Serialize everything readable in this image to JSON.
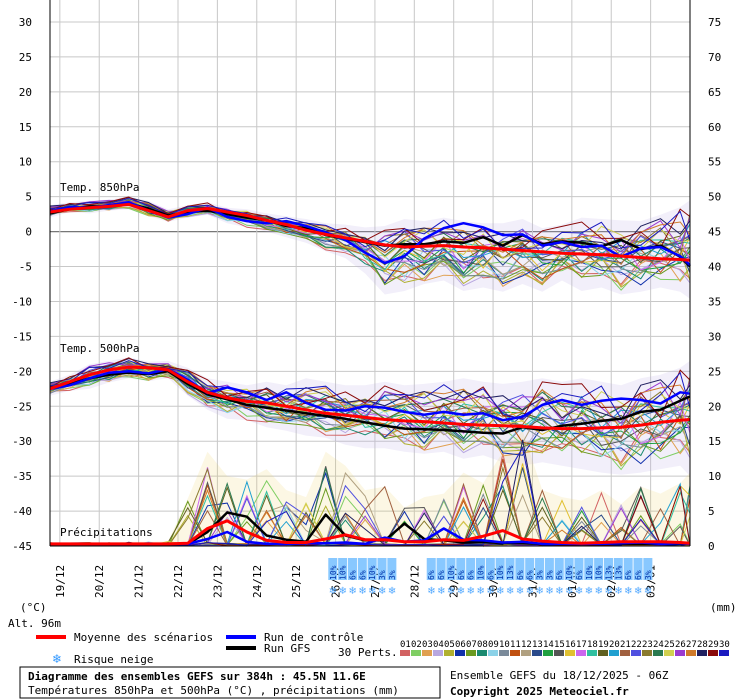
{
  "chart_data": {
    "type": "line",
    "title": "Diagramme des ensembles GEFS sur 384h : 45.5N 11.6E",
    "subtitle": "Températures 850hPa et 500hPa (°C) , précipitations (mm)",
    "run_info": "Ensemble GEFS du 18/12/2025 - 06Z",
    "copyright": "Copyright 2025 Meteociel.fr",
    "altitude": "Alt. 96m",
    "left_unit": "(°C)",
    "right_unit": "(mm)",
    "left_axis": {
      "ylim": [
        -45,
        30
      ],
      "ticks": [
        "30",
        "25",
        "20",
        "15",
        "10",
        "5",
        "0",
        "-5",
        "-10",
        "-15",
        "-20",
        "-25",
        "-30",
        "-35",
        "-40",
        "-45"
      ]
    },
    "right_axis": {
      "ylim": [
        0,
        75
      ],
      "ticks": [
        "75",
        "70",
        "65",
        "60",
        "55",
        "50",
        "45",
        "40",
        "35",
        "30",
        "25",
        "20",
        "15",
        "10",
        "5",
        "0"
      ]
    },
    "x_days": [
      18.75,
      35
    ],
    "x_tick_labels": [
      "19/12",
      "20/12",
      "21/12",
      "22/12",
      "23/12",
      "24/12",
      "25/12",
      "26/12",
      "27/12",
      "28/12",
      "29/12",
      "30/12",
      "31/12",
      "01/01",
      "02/01",
      "03/01"
    ],
    "x_tick_days": [
      19,
      20,
      21,
      22,
      23,
      24,
      25,
      26,
      27,
      28,
      29,
      30,
      31,
      32,
      33,
      34
    ],
    "panel_labels": {
      "t850": "Temp. 850hPa",
      "t500": "Temp. 500hPa",
      "precip": "Précipitations"
    },
    "series": [
      {
        "name": "Moyenne des scénarios",
        "color": "#ff0000",
        "x": [
          18.75,
          19.25,
          19.75,
          20.25,
          20.75,
          21.25,
          21.75,
          22.25,
          22.75,
          23.25,
          23.75,
          24.25,
          24.75,
          25.25,
          25.75,
          26.25,
          26.75,
          27.25,
          27.75,
          28.25,
          28.75,
          29.25,
          29.75,
          30.25,
          30.75,
          31.25,
          31.75,
          32.25,
          32.75,
          33.25,
          33.75,
          34.25,
          34.75,
          35
        ],
        "t850": [
          2.8,
          3.2,
          3.4,
          3.6,
          3.9,
          3.0,
          2.1,
          3.0,
          3.3,
          2.8,
          2.3,
          1.6,
          1.0,
          0.2,
          -0.4,
          -0.9,
          -1.4,
          -1.9,
          -2.2,
          -2.1,
          -2.0,
          -2.2,
          -2.3,
          -2.5,
          -2.7,
          -2.9,
          -3.1,
          -3.2,
          -3.3,
          -3.5,
          -3.7,
          -3.9,
          -4.0,
          -4.1
        ],
        "t500": [
          -22.5,
          -21.5,
          -20.5,
          -19.8,
          -19.4,
          -19.5,
          -19.8,
          -21.5,
          -23.0,
          -23.8,
          -24.3,
          -24.5,
          -25.0,
          -25.5,
          -26.0,
          -26.3,
          -26.6,
          -26.9,
          -27.1,
          -27.2,
          -27.4,
          -27.6,
          -27.7,
          -27.8,
          -27.9,
          -28.1,
          -28.2,
          -28.2,
          -28.1,
          -28.0,
          -27.7,
          -27.3,
          -27.0,
          -26.9
        ],
        "precip": [
          0.3,
          0.3,
          0.3,
          0.3,
          0.3,
          0.3,
          0.3,
          0.4,
          2.5,
          3.6,
          2.0,
          0.8,
          0.5,
          0.5,
          1.0,
          1.6,
          0.9,
          0.9,
          0.6,
          0.6,
          0.9,
          0.8,
          1.4,
          2.2,
          1.0,
          0.7,
          0.5,
          0.4,
          0.5,
          0.6,
          0.6,
          0.6,
          0.5,
          0.4
        ]
      },
      {
        "name": "Run de contrôle",
        "color": "#0000ff",
        "x": [
          18.75,
          19.25,
          19.75,
          20.25,
          20.75,
          21.25,
          21.75,
          22.25,
          22.75,
          23.25,
          23.75,
          24.25,
          24.75,
          25.25,
          25.75,
          26.25,
          26.75,
          27.25,
          27.75,
          28.25,
          28.75,
          29.25,
          29.75,
          30.25,
          30.75,
          31.25,
          31.75,
          32.25,
          32.75,
          33.25,
          33.75,
          34.25,
          34.75,
          35
        ],
        "t850": [
          2.9,
          3.5,
          3.4,
          3.8,
          4.2,
          3.0,
          2.0,
          2.5,
          3.4,
          2.1,
          1.5,
          1.2,
          1.5,
          0.8,
          -0.1,
          -1.2,
          -3.0,
          -4.5,
          -3.5,
          -1.0,
          0.5,
          1.2,
          0.6,
          -0.5,
          -0.4,
          -2.0,
          -1.5,
          -2.2,
          -2.0,
          -3.6,
          -2.4,
          -2.2,
          -3.5,
          -4.8
        ],
        "t500": [
          -22.5,
          -22.0,
          -21.0,
          -20.2,
          -20.0,
          -20.3,
          -19.7,
          -21.2,
          -23.1,
          -22.3,
          -23.0,
          -24.1,
          -23.0,
          -24.5,
          -25.5,
          -25.6,
          -25.0,
          -25.2,
          -25.8,
          -26.2,
          -25.8,
          -26.2,
          -26.0,
          -27.0,
          -26.5,
          -24.8,
          -24.1,
          -24.8,
          -24.2,
          -23.9,
          -24.1,
          -24.6,
          -23.0,
          -23.2
        ],
        "precip": [
          0.3,
          0.3,
          0.3,
          0.3,
          0.3,
          0.3,
          0.3,
          0.3,
          1.0,
          2.0,
          0.6,
          0.3,
          0.3,
          0.4,
          0.4,
          0.5,
          0.3,
          1.2,
          0.6,
          0.8,
          2.5,
          0.9,
          0.8,
          0.5,
          0.6,
          0.3,
          0.3,
          0.3,
          0.3,
          0.4,
          0.5,
          0.3,
          0.4,
          0.3
        ]
      },
      {
        "name": "Run GFS",
        "color": "#000000",
        "x": [
          18.75,
          19.25,
          19.75,
          20.25,
          20.75,
          21.25,
          21.75,
          22.25,
          22.75,
          23.25,
          23.75,
          24.25,
          24.75,
          25.25,
          25.75,
          26.25,
          26.75,
          27.25,
          27.75,
          28.25,
          28.75,
          29.25,
          29.75,
          30.25,
          30.75,
          31.25,
          31.75,
          32.25,
          32.75,
          33.25,
          33.75,
          34.25,
          34.75,
          35
        ],
        "t850": [
          2.6,
          3.2,
          3.6,
          3.6,
          4.0,
          3.3,
          2.3,
          2.8,
          3.0,
          2.5,
          2.0,
          1.6,
          0.8,
          0.5,
          -0.5,
          -1.0,
          -1.5,
          -2.0,
          -1.8,
          -1.8,
          -1.4,
          -1.6,
          -0.8,
          -2.0,
          -0.5,
          -1.8,
          -1.4,
          -1.6,
          -2.1,
          -1.2,
          -2.5,
          -2.0,
          -3.6,
          -5.0
        ],
        "t500": [
          -22.4,
          -21.8,
          -21.0,
          -20.5,
          -20.2,
          -20.4,
          -20.0,
          -21.8,
          -23.3,
          -24.0,
          -24.8,
          -25.2,
          -25.6,
          -26.0,
          -26.4,
          -26.8,
          -27.3,
          -27.8,
          -28.2,
          -28.3,
          -28.4,
          -28.6,
          -28.8,
          -28.9,
          -28.0,
          -28.4,
          -27.8,
          -27.5,
          -27.1,
          -26.8,
          -25.8,
          -25.5,
          -24.2,
          -23.6
        ],
        "precip": [
          0.3,
          0.3,
          0.3,
          0.3,
          0.3,
          0.3,
          0.3,
          0.3,
          2.0,
          4.8,
          4.2,
          1.5,
          0.9,
          0.6,
          4.5,
          1.5,
          0.8,
          0.8,
          3.2,
          1.0,
          0.8,
          0.5,
          0.6,
          0.4,
          0.4,
          0.3,
          0.3,
          0.3,
          0.3,
          0.3,
          0.3,
          0.3,
          0.3,
          0.4
        ]
      }
    ],
    "perturbations": {
      "count_label": "30 Perts.",
      "names": [
        "01",
        "02",
        "03",
        "04",
        "05",
        "06",
        "07",
        "08",
        "09",
        "10",
        "11",
        "12",
        "13",
        "14",
        "15",
        "16",
        "17",
        "18",
        "19",
        "20",
        "21",
        "22",
        "23",
        "24",
        "25",
        "26",
        "27",
        "28",
        "29",
        "30"
      ],
      "colors": [
        "#d26262",
        "#7fce63",
        "#e0a050",
        "#b8a7e0",
        "#b0b030",
        "#0f30aa",
        "#6a9a20",
        "#1a8a70",
        "#8bd2e8",
        "#7a8a9a",
        "#c05010",
        "#b0a080",
        "#2a4a8a",
        "#20a040",
        "#555555",
        "#e0c030",
        "#cc66ee",
        "#30c0a0",
        "#606020",
        "#20a0d0",
        "#a06040",
        "#5050e0",
        "#8a7a30",
        "#2a7a50",
        "#d0d050",
        "#9a3ad0",
        "#d07a2a",
        "#202060",
        "#8a0a0a",
        "#1a1ac0"
      ],
      "envelope_t850": [
        [
          2.0,
          3.8
        ],
        [
          2.8,
          4.2
        ],
        [
          2.6,
          4.4
        ],
        [
          3.0,
          4.6
        ],
        [
          3.2,
          5.0
        ],
        [
          2.2,
          4.4
        ],
        [
          1.4,
          3.2
        ],
        [
          2.0,
          3.8
        ],
        [
          2.4,
          4.2
        ],
        [
          1.2,
          3.4
        ],
        [
          0.6,
          3.2
        ],
        [
          0.0,
          2.6
        ],
        [
          -0.8,
          2.2
        ],
        [
          -1.6,
          1.8
        ],
        [
          -2.8,
          1.2
        ],
        [
          -3.8,
          1.0
        ],
        [
          -6.0,
          0.6
        ],
        [
          -9.0,
          0.8
        ],
        [
          -8.5,
          1.8
        ],
        [
          -7.5,
          1.5
        ],
        [
          -7.0,
          2.0
        ],
        [
          -8.5,
          1.5
        ],
        [
          -8.0,
          1.2
        ],
        [
          -8.6,
          1.2
        ],
        [
          -7.5,
          1.8
        ],
        [
          -8.6,
          0.5
        ],
        [
          -7.0,
          1.0
        ],
        [
          -8.5,
          2.0
        ],
        [
          -8.0,
          1.8
        ],
        [
          -9.0,
          1.6
        ],
        [
          -8.6,
          1.5
        ],
        [
          -8.0,
          2.4
        ],
        [
          -8.6,
          3.5
        ],
        [
          -9.6,
          4.5
        ]
      ],
      "envelope_t500": [
        [
          -23.5,
          -21.5
        ],
        [
          -22.8,
          -20.5
        ],
        [
          -22.5,
          -19.0
        ],
        [
          -21.6,
          -18.5
        ],
        [
          -21.0,
          -18.0
        ],
        [
          -21.4,
          -18.6
        ],
        [
          -21.0,
          -18.5
        ],
        [
          -23.5,
          -19.5
        ],
        [
          -25.5,
          -21.0
        ],
        [
          -26.8,
          -21.5
        ],
        [
          -27.0,
          -22.0
        ],
        [
          -28.0,
          -21.5
        ],
        [
          -28.5,
          -22.0
        ],
        [
          -29.2,
          -21.0
        ],
        [
          -29.5,
          -21.5
        ],
        [
          -30.5,
          -22.0
        ],
        [
          -31.0,
          -22.0
        ],
        [
          -31.0,
          -21.5
        ],
        [
          -31.5,
          -22.0
        ],
        [
          -31.8,
          -21.8
        ],
        [
          -31.5,
          -21.5
        ],
        [
          -32.5,
          -21.0
        ],
        [
          -32.0,
          -21.5
        ],
        [
          -33.0,
          -21.8
        ],
        [
          -33.5,
          -21.5
        ],
        [
          -33.0,
          -21.0
        ],
        [
          -33.5,
          -21.5
        ],
        [
          -34.0,
          -21.0
        ],
        [
          -34.5,
          -21.5
        ],
        [
          -34.8,
          -22.0
        ],
        [
          -34.5,
          -21.0
        ],
        [
          -34.0,
          -20.5
        ],
        [
          -33.5,
          -19.5
        ],
        [
          -35.0,
          -18.5
        ]
      ],
      "envelope_precip": [
        [
          0.0,
          0.5
        ],
        [
          0.0,
          0.5
        ],
        [
          0.0,
          0.5
        ],
        [
          0.0,
          0.5
        ],
        [
          0.0,
          0.6
        ],
        [
          0.0,
          0.6
        ],
        [
          0.0,
          0.7
        ],
        [
          0.0,
          6.8
        ],
        [
          0.0,
          13.5
        ],
        [
          0.0,
          10.0
        ],
        [
          0.0,
          9.5
        ],
        [
          0.0,
          11.0
        ],
        [
          0.0,
          8.0
        ],
        [
          0.0,
          7.0
        ],
        [
          0.0,
          13.5
        ],
        [
          0.0,
          11.5
        ],
        [
          0.0,
          8.0
        ],
        [
          0.0,
          8.5
        ],
        [
          0.0,
          5.5
        ],
        [
          0.0,
          7.0
        ],
        [
          0.0,
          7.5
        ],
        [
          0.0,
          10.5
        ],
        [
          0.0,
          9.0
        ],
        [
          0.0,
          13.5
        ],
        [
          0.0,
          16.5
        ],
        [
          0.0,
          8.0
        ],
        [
          0.0,
          7.0
        ],
        [
          0.0,
          6.5
        ],
        [
          0.0,
          8.0
        ],
        [
          0.0,
          6.0
        ],
        [
          0.0,
          8.5
        ],
        [
          0.0,
          7.5
        ],
        [
          0.0,
          9.0
        ],
        [
          0.0,
          10.5
        ]
      ]
    },
    "snow_risk": {
      "x_days": [
        25.93,
        26.18,
        26.43,
        26.68,
        26.93,
        27.18,
        27.43,
        28.43,
        28.68,
        28.93,
        29.18,
        29.43,
        29.68,
        29.93,
        30.18,
        30.43,
        30.68,
        30.93,
        31.18,
        31.43,
        31.68,
        31.93,
        32.18,
        32.43,
        32.68,
        32.93,
        33.18,
        33.43,
        33.68,
        33.93
      ],
      "labels": [
        "10%",
        "10%",
        "6%",
        "6%",
        "10%",
        "3%",
        "3%",
        "6%",
        "6%",
        "10%",
        "6%",
        "6%",
        "10%",
        "6%",
        "10%",
        "13%",
        "6%",
        "6%",
        "3%",
        "3%",
        "6%",
        "10%",
        "6%",
        "10%",
        "10%",
        "13%",
        "13%",
        "6%",
        "6%",
        "3%"
      ],
      "marker_color": "#88c8ff"
    },
    "legend": {
      "mean": "Moyenne des scénarios",
      "control": "Run de contrôle",
      "gfs": "Run GFS",
      "snow": "Risque neige",
      "mean_color": "#ff0000",
      "control_color": "#0000ff",
      "gfs_color": "#000000"
    }
  }
}
